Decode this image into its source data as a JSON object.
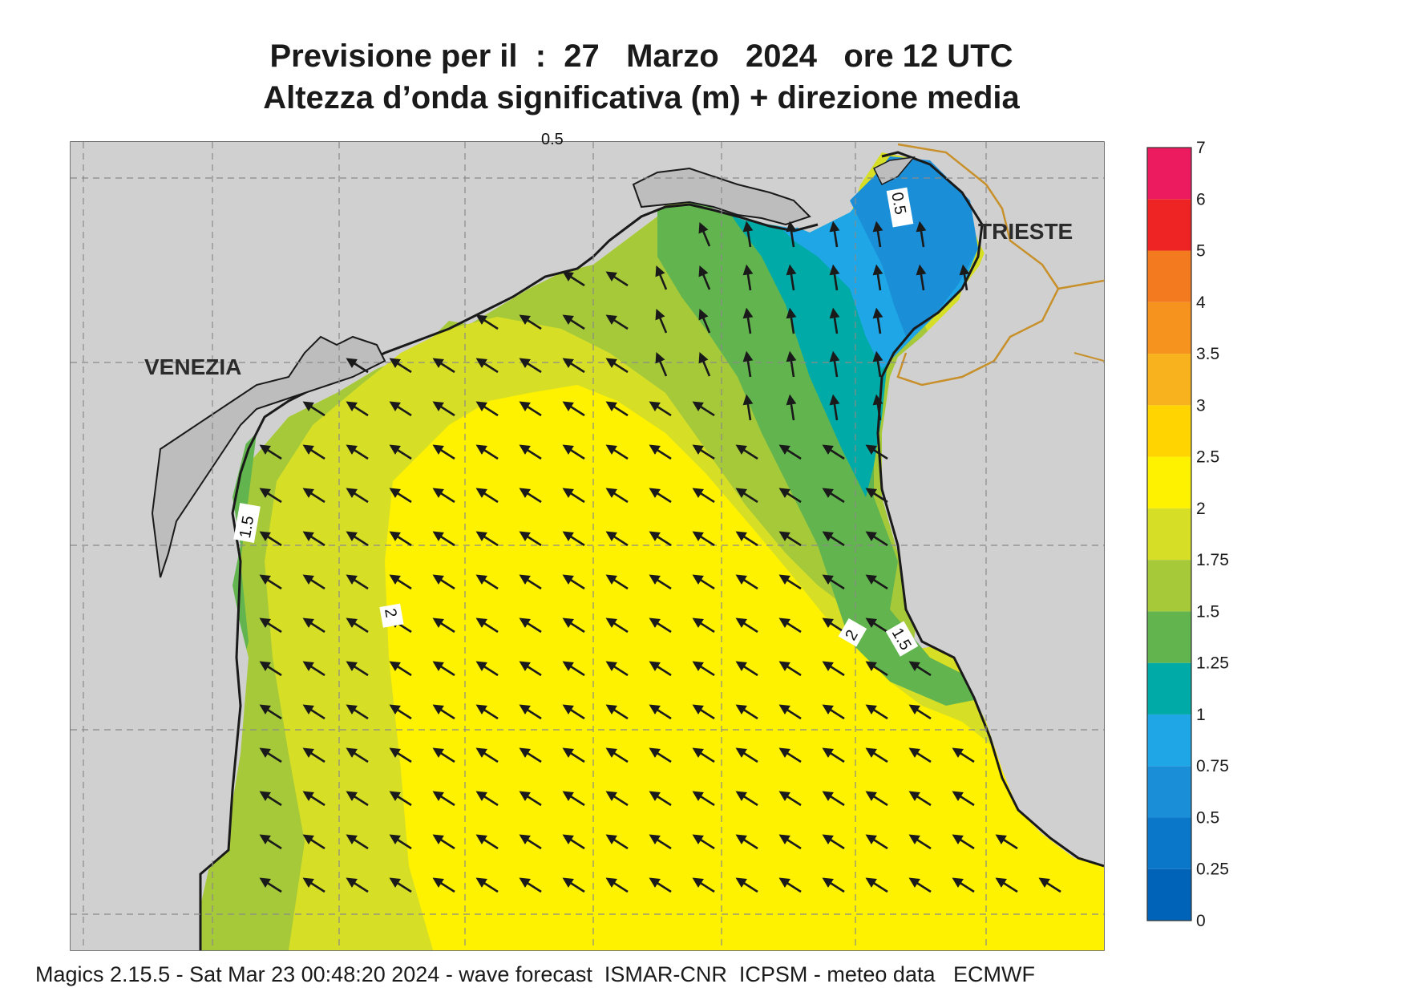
{
  "header": {
    "title_line1": "Previsione per il  :  27   Marzo   2024   ore 12 UTC",
    "title_line2": "Altezza d’onda significativa (m) + direzione media"
  },
  "map": {
    "cities": [
      "VENEZIA",
      "TRIESTE"
    ],
    "contour_labels": [
      "0.5",
      "0.5",
      "1.5",
      "2",
      "1.5",
      "2"
    ],
    "arrow_direction": "north-west",
    "arrow_icon": "wave-direction-arrow-icon"
  },
  "colorbar": {
    "levels": [
      "0",
      "0.25",
      "0.5",
      "0.75",
      "1",
      "1.25",
      "1.5",
      "1.75",
      "2",
      "2.5",
      "3",
      "3.5",
      "4",
      "5",
      "6",
      "7"
    ],
    "colors": [
      "#0063b8",
      "#0a77c8",
      "#1b8ed8",
      "#1ea6e6",
      "#00aaa6",
      "#62b54e",
      "#a6c93a",
      "#d6df26",
      "#fff200",
      "#ffd400",
      "#f8b21d",
      "#f6921e",
      "#f47a20",
      "#ee2424",
      "#ec1a5e"
    ]
  },
  "footer": {
    "text": "Magics 2.15.5 - Sat Mar 23 00:48:20 2024 - wave forecast  ISMAR-CNR  ICPSM - meteo data   ECMWF"
  }
}
